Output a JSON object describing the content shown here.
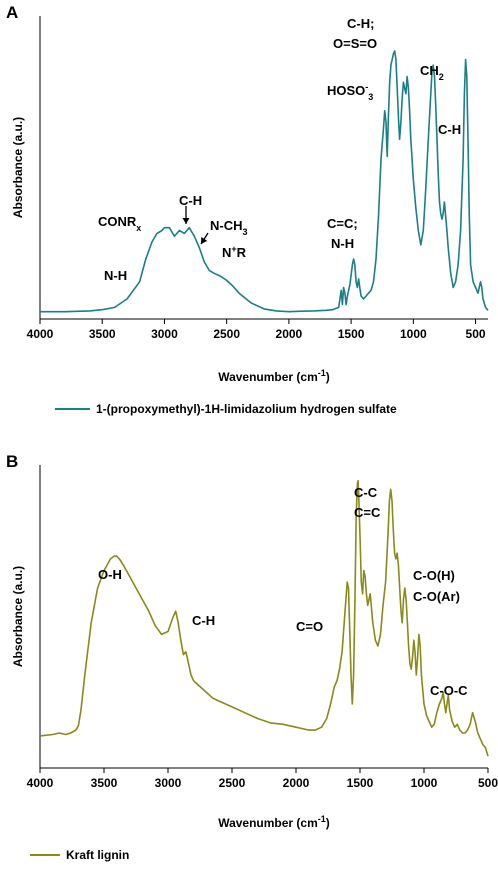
{
  "chart_data": [
    {
      "type": "line",
      "panel_label": "A",
      "xlabel_main": "Wavenumber (cm",
      "xlabel_sup": "-1",
      "xlabel_end": ")",
      "ylabel": "Absorbance (a.u.)",
      "xlim": [
        4000,
        400
      ],
      "x_reversed": true,
      "x_ticks": [
        "4000",
        "3500",
        "3000",
        "2500",
        "2000",
        "1500",
        "1000",
        "500"
      ],
      "x_tick_values": [
        4000,
        3500,
        3000,
        2500,
        2000,
        1500,
        1000,
        500
      ],
      "ylim": [
        0,
        1
      ],
      "grid": false,
      "legend_position": "bottom",
      "series": [
        {
          "name": "1-(propoxymethyl)-1H-limidazolium hydrogen sulfate",
          "color": "#1a7f86",
          "x": [
            4000,
            3800,
            3600,
            3500,
            3400,
            3300,
            3200,
            3150,
            3100,
            3060,
            3020,
            3000,
            2960,
            2920,
            2880,
            2840,
            2800,
            2760,
            2720,
            2680,
            2640,
            2600,
            2550,
            2500,
            2450,
            2400,
            2300,
            2200,
            2100,
            2000,
            1900,
            1800,
            1700,
            1650,
            1600,
            1580,
            1570,
            1560,
            1550,
            1540,
            1530,
            1510,
            1490,
            1480,
            1470,
            1460,
            1450,
            1440,
            1430,
            1420,
            1400,
            1380,
            1360,
            1340,
            1320,
            1300,
            1280,
            1260,
            1240,
            1230,
            1220,
            1210,
            1200,
            1190,
            1180,
            1170,
            1160,
            1150,
            1140,
            1130,
            1120,
            1110,
            1100,
            1090,
            1080,
            1070,
            1060,
            1050,
            1040,
            1030,
            1020,
            1010,
            1000,
            980,
            960,
            940,
            920,
            900,
            880,
            860,
            850,
            840,
            830,
            820,
            810,
            800,
            790,
            780,
            770,
            760,
            750,
            740,
            730,
            720,
            700,
            680,
            660,
            640,
            620,
            600,
            590,
            580,
            570,
            560,
            550,
            540,
            520,
            500,
            480,
            460,
            450,
            440,
            420,
            400
          ],
          "y": [
            0.015,
            0.015,
            0.018,
            0.022,
            0.03,
            0.06,
            0.12,
            0.2,
            0.26,
            0.29,
            0.3,
            0.31,
            0.31,
            0.28,
            0.3,
            0.29,
            0.31,
            0.28,
            0.24,
            0.19,
            0.16,
            0.15,
            0.14,
            0.125,
            0.105,
            0.08,
            0.045,
            0.025,
            0.018,
            0.015,
            0.017,
            0.018,
            0.02,
            0.022,
            0.03,
            0.09,
            0.04,
            0.1,
            0.08,
            0.04,
            0.07,
            0.11,
            0.18,
            0.2,
            0.18,
            0.12,
            0.1,
            0.13,
            0.1,
            0.07,
            0.06,
            0.07,
            0.08,
            0.09,
            0.12,
            0.2,
            0.35,
            0.55,
            0.66,
            0.72,
            0.68,
            0.56,
            0.7,
            0.82,
            0.88,
            0.9,
            0.92,
            0.93,
            0.9,
            0.8,
            0.7,
            0.62,
            0.68,
            0.76,
            0.82,
            0.8,
            0.78,
            0.84,
            0.8,
            0.72,
            0.62,
            0.55,
            0.48,
            0.38,
            0.3,
            0.25,
            0.3,
            0.45,
            0.62,
            0.78,
            0.86,
            0.88,
            0.84,
            0.74,
            0.62,
            0.5,
            0.4,
            0.36,
            0.34,
            0.36,
            0.4,
            0.35,
            0.3,
            0.24,
            0.15,
            0.1,
            0.12,
            0.18,
            0.3,
            0.55,
            0.78,
            0.9,
            0.84,
            0.6,
            0.35,
            0.18,
            0.12,
            0.1,
            0.08,
            0.12,
            0.1,
            0.06,
            0.03,
            0.02
          ]
        }
      ],
      "annotations": [
        {
          "label": "N-H",
          "sub": "",
          "sup": "",
          "tail": ""
        },
        {
          "label": "CONR",
          "sub": "x",
          "sup": "",
          "tail": ""
        },
        {
          "label": "C-H",
          "sub": "",
          "sup": "",
          "tail": ""
        },
        {
          "label": "N-CH",
          "sub": "3",
          "sup": "",
          "tail": ""
        },
        {
          "label": "N",
          "sub": "",
          "sup": "+",
          "tail": "R"
        },
        {
          "label": "C=C;",
          "sub": "",
          "sup": "",
          "tail": ""
        },
        {
          "label": "N-H",
          "sub": "",
          "sup": "",
          "tail": ""
        },
        {
          "label": "HOSO",
          "sub": "3",
          "sup": "-",
          "tail": ""
        },
        {
          "label": "C-H;",
          "sub": "",
          "sup": "",
          "tail": ""
        },
        {
          "label": "O=S=O",
          "sub": "",
          "sup": "",
          "tail": ""
        },
        {
          "label": "CH",
          "sub": "2",
          "sup": "",
          "tail": ""
        },
        {
          "label": "C-H",
          "sub": "",
          "sup": "",
          "tail": ""
        }
      ]
    },
    {
      "type": "line",
      "panel_label": "B",
      "xlabel_main": "Wavenumber (cm",
      "xlabel_sup": "-1",
      "xlabel_end": ")",
      "ylabel": "Absorbance (a.u.)",
      "xlim": [
        4000,
        500
      ],
      "x_reversed": true,
      "x_ticks": [
        "4000",
        "3500",
        "3000",
        "2500",
        "2000",
        "1500",
        "1000",
        "500"
      ],
      "x_tick_values": [
        4000,
        3500,
        3000,
        2500,
        2000,
        1500,
        1000,
        500
      ],
      "ylim": [
        0,
        1
      ],
      "grid": false,
      "legend_position": "bottom",
      "series": [
        {
          "name": "Kraft lignin",
          "color": "#8a8a1a",
          "x": [
            4000,
            3900,
            3850,
            3800,
            3760,
            3720,
            3700,
            3680,
            3650,
            3600,
            3550,
            3500,
            3450,
            3420,
            3400,
            3380,
            3350,
            3300,
            3250,
            3200,
            3150,
            3100,
            3050,
            3000,
            2960,
            2940,
            2920,
            2900,
            2880,
            2860,
            2840,
            2820,
            2800,
            2750,
            2700,
            2650,
            2600,
            2500,
            2400,
            2300,
            2200,
            2100,
            2050,
            2000,
            1950,
            1900,
            1850,
            1800,
            1760,
            1730,
            1710,
            1700,
            1690,
            1680,
            1660,
            1640,
            1620,
            1600,
            1590,
            1580,
            1570,
            1560,
            1550,
            1540,
            1530,
            1520,
            1515,
            1510,
            1500,
            1490,
            1480,
            1470,
            1460,
            1450,
            1440,
            1430,
            1420,
            1400,
            1380,
            1360,
            1340,
            1320,
            1300,
            1280,
            1270,
            1260,
            1250,
            1240,
            1230,
            1220,
            1210,
            1200,
            1190,
            1180,
            1170,
            1160,
            1150,
            1140,
            1130,
            1120,
            1110,
            1100,
            1090,
            1080,
            1070,
            1060,
            1050,
            1040,
            1030,
            1020,
            1000,
            980,
            960,
            940,
            920,
            900,
            880,
            860,
            850,
            840,
            830,
            820,
            810,
            800,
            780,
            760,
            740,
            720,
            700,
            680,
            660,
            640,
            620,
            600,
            580,
            560,
            540,
            520,
            500
          ],
          "y": [
            0.09,
            0.095,
            0.1,
            0.095,
            0.1,
            0.11,
            0.125,
            0.18,
            0.3,
            0.48,
            0.6,
            0.66,
            0.7,
            0.71,
            0.71,
            0.7,
            0.68,
            0.64,
            0.6,
            0.56,
            0.52,
            0.47,
            0.44,
            0.45,
            0.5,
            0.52,
            0.48,
            0.42,
            0.37,
            0.38,
            0.34,
            0.3,
            0.28,
            0.26,
            0.24,
            0.22,
            0.21,
            0.19,
            0.17,
            0.15,
            0.135,
            0.13,
            0.125,
            0.12,
            0.115,
            0.11,
            0.11,
            0.12,
            0.15,
            0.2,
            0.24,
            0.26,
            0.27,
            0.28,
            0.32,
            0.38,
            0.5,
            0.62,
            0.6,
            0.45,
            0.3,
            0.2,
            0.3,
            0.55,
            0.85,
            0.96,
            0.97,
            0.92,
            0.78,
            0.62,
            0.58,
            0.66,
            0.64,
            0.58,
            0.54,
            0.56,
            0.58,
            0.48,
            0.42,
            0.4,
            0.44,
            0.54,
            0.62,
            0.8,
            0.9,
            0.94,
            0.9,
            0.8,
            0.72,
            0.7,
            0.72,
            0.68,
            0.6,
            0.52,
            0.48,
            0.56,
            0.6,
            0.56,
            0.48,
            0.4,
            0.34,
            0.32,
            0.36,
            0.42,
            0.38,
            0.3,
            0.36,
            0.44,
            0.4,
            0.3,
            0.2,
            0.16,
            0.14,
            0.12,
            0.13,
            0.17,
            0.2,
            0.22,
            0.24,
            0.2,
            0.17,
            0.2,
            0.23,
            0.18,
            0.14,
            0.12,
            0.13,
            0.11,
            0.1,
            0.1,
            0.11,
            0.13,
            0.17,
            0.14,
            0.1,
            0.08,
            0.06,
            0.05,
            0.02
          ]
        }
      ],
      "annotations": [
        {
          "label": "O-H",
          "sub": "",
          "sup": "",
          "tail": ""
        },
        {
          "label": "C-H",
          "sub": "",
          "sup": "",
          "tail": ""
        },
        {
          "label": "C=O",
          "sub": "",
          "sup": "",
          "tail": ""
        },
        {
          "label": "C-C",
          "sub": "",
          "sup": "",
          "tail": ""
        },
        {
          "label": "C=C",
          "sub": "",
          "sup": "",
          "tail": ""
        },
        {
          "label": "C-O(H)",
          "sub": "",
          "sup": "",
          "tail": ""
        },
        {
          "label": "C-O(Ar)",
          "sub": "",
          "sup": "",
          "tail": ""
        },
        {
          "label": "C-O-C",
          "sub": "",
          "sup": "",
          "tail": ""
        }
      ]
    }
  ]
}
